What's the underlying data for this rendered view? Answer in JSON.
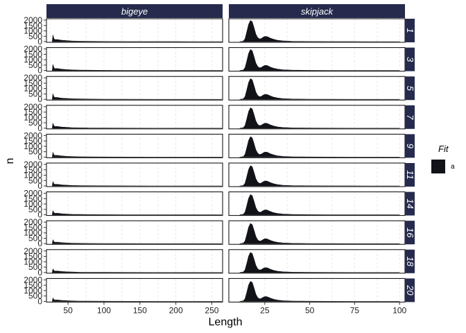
{
  "chart_data": {
    "type": "area",
    "facet_columns": [
      "bigeye",
      "skipjack"
    ],
    "facet_rows": [
      "1",
      "3",
      "5",
      "7",
      "9",
      "11",
      "14",
      "16",
      "18",
      "20"
    ],
    "xlabel": "Length",
    "ylabel": "n",
    "ylim": [
      0,
      2000
    ],
    "yticks": [
      0,
      500,
      1000,
      1500,
      2000
    ],
    "xaxis": {
      "bigeye": {
        "xlim": [
          20,
          265
        ],
        "ticks": [
          50,
          100,
          150,
          200,
          250
        ]
      },
      "skipjack": {
        "xlim": [
          5,
          103
        ],
        "ticks": [
          25,
          50,
          75,
          100
        ]
      }
    },
    "legend": {
      "title": "Fit",
      "entries": [
        {
          "label": "a",
          "color": "#111318"
        }
      ],
      "position": "right"
    },
    "colors": {
      "strip": "#262b4d",
      "fill": "#111318",
      "grid": "#e3e3e3"
    },
    "series": {
      "bigeye": {
        "x": [
          28,
          29,
          30,
          31,
          33,
          35,
          38,
          42,
          48,
          55,
          65,
          80,
          100,
          130,
          170,
          220,
          265
        ],
        "values_by_row": [
          [
            0,
            620,
            360,
            210,
            180,
            200,
            160,
            120,
            90,
            60,
            40,
            25,
            15,
            8,
            4,
            2,
            0
          ],
          [
            0,
            560,
            330,
            200,
            170,
            190,
            150,
            115,
            85,
            58,
            38,
            24,
            14,
            7,
            4,
            2,
            0
          ],
          [
            0,
            520,
            300,
            190,
            165,
            180,
            145,
            110,
            82,
            55,
            36,
            23,
            13,
            7,
            3,
            2,
            0
          ],
          [
            0,
            470,
            280,
            180,
            155,
            170,
            138,
            105,
            78,
            52,
            34,
            22,
            12,
            6,
            3,
            1,
            0
          ],
          [
            0,
            430,
            260,
            170,
            150,
            160,
            130,
            100,
            74,
            50,
            33,
            21,
            12,
            6,
            3,
            1,
            0
          ],
          [
            0,
            390,
            240,
            160,
            140,
            150,
            124,
            95,
            70,
            48,
            32,
            20,
            11,
            6,
            3,
            1,
            0
          ],
          [
            0,
            370,
            230,
            155,
            136,
            146,
            120,
            92,
            68,
            46,
            31,
            19,
            11,
            5,
            3,
            1,
            0
          ],
          [
            0,
            350,
            220,
            150,
            132,
            142,
            117,
            90,
            66,
            45,
            30,
            19,
            10,
            5,
            2,
            1,
            0
          ],
          [
            0,
            330,
            210,
            145,
            128,
            138,
            114,
            88,
            65,
            44,
            29,
            18,
            10,
            5,
            2,
            1,
            0
          ],
          [
            0,
            310,
            200,
            140,
            124,
            134,
            111,
            86,
            64,
            43,
            29,
            18,
            10,
            5,
            2,
            1,
            0
          ]
        ]
      },
      "skipjack": {
        "x": [
          11,
          13,
          14,
          15,
          16,
          17,
          18,
          19,
          20,
          21,
          22,
          23,
          24,
          25,
          26,
          27,
          28,
          30,
          32,
          35,
          40,
          50,
          60,
          80,
          100
        ],
        "values_by_row": [
          [
            0,
            40,
            250,
            900,
            1600,
            1960,
            1850,
            1300,
            700,
            380,
            250,
            280,
            400,
            480,
            480,
            420,
            330,
            210,
            130,
            70,
            35,
            12,
            5,
            1,
            0
          ],
          [
            0,
            40,
            250,
            880,
            1580,
            1940,
            1830,
            1290,
            690,
            375,
            245,
            275,
            390,
            470,
            470,
            410,
            325,
            205,
            128,
            68,
            34,
            12,
            5,
            1,
            0
          ],
          [
            0,
            40,
            245,
            870,
            1560,
            1920,
            1810,
            1280,
            685,
            370,
            242,
            272,
            385,
            465,
            465,
            405,
            320,
            202,
            126,
            67,
            33,
            12,
            5,
            1,
            0
          ],
          [
            0,
            40,
            240,
            860,
            1550,
            1900,
            1800,
            1270,
            680,
            368,
            240,
            270,
            382,
            460,
            460,
            402,
            318,
            200,
            125,
            66,
            33,
            12,
            5,
            1,
            0
          ],
          [
            0,
            40,
            240,
            855,
            1540,
            1890,
            1790,
            1265,
            678,
            366,
            238,
            268,
            380,
            458,
            458,
            400,
            316,
            198,
            124,
            66,
            33,
            12,
            5,
            1,
            0
          ],
          [
            0,
            40,
            238,
            850,
            1535,
            1880,
            1785,
            1260,
            676,
            364,
            236,
            266,
            378,
            455,
            455,
            398,
            314,
            197,
            123,
            65,
            32,
            11,
            5,
            1,
            0
          ],
          [
            0,
            40,
            236,
            845,
            1530,
            1875,
            1780,
            1255,
            674,
            362,
            235,
            265,
            376,
            452,
            452,
            396,
            312,
            196,
            122,
            65,
            32,
            11,
            5,
            1,
            0
          ],
          [
            0,
            40,
            235,
            842,
            1525,
            1870,
            1775,
            1250,
            672,
            360,
            234,
            264,
            375,
            450,
            450,
            394,
            311,
            195,
            122,
            64,
            32,
            11,
            5,
            1,
            0
          ],
          [
            0,
            40,
            234,
            840,
            1520,
            1865,
            1770,
            1248,
            670,
            358,
            233,
            263,
            374,
            448,
            448,
            392,
            310,
            194,
            121,
            64,
            32,
            11,
            5,
            1,
            0
          ],
          [
            0,
            40,
            232,
            838,
            1515,
            1860,
            1765,
            1245,
            668,
            356,
            232,
            262,
            372,
            446,
            446,
            390,
            308,
            193,
            120,
            63,
            31,
            11,
            5,
            1,
            0
          ]
        ]
      }
    }
  }
}
